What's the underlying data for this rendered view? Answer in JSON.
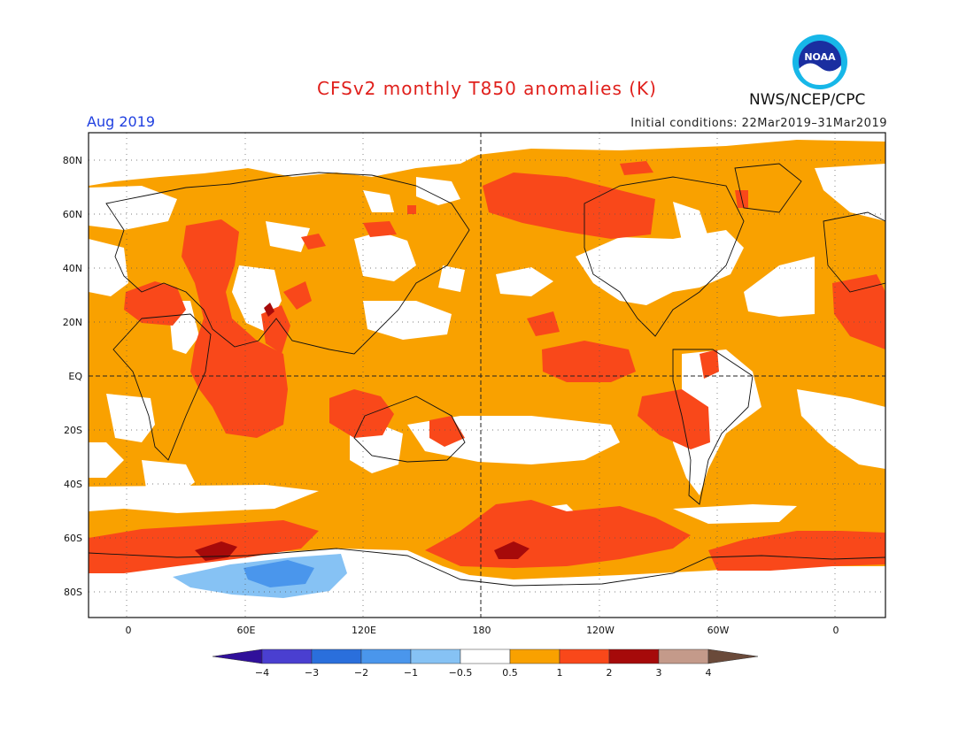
{
  "title": "CFSv2 monthly T850 anomalies (K)",
  "valid_month": "Aug 2019",
  "initial_conditions": "Initial conditions: 22Mar2019–31Mar2019",
  "agency": "NWS/NCEP/CPC",
  "logo_text": "NOAA",
  "lat_labels": [
    "80N",
    "60N",
    "40N",
    "20N",
    "EQ",
    "20S",
    "40S",
    "60S",
    "80S"
  ],
  "lon_labels": [
    "0",
    "60E",
    "120E",
    "180",
    "120W",
    "60W",
    "0"
  ],
  "colorbar": {
    "ticks": [
      "−4",
      "−3",
      "−2",
      "−1",
      "−0.5",
      "0.5",
      "1",
      "2",
      "3",
      "4"
    ],
    "colors": [
      "#30109a",
      "#4a3fd0",
      "#2a6fdc",
      "#4a96ec",
      "#86c2f4",
      "#ffffff",
      "#f9a100",
      "#f9481a",
      "#a60a0a",
      "#c49a8a",
      "#6a4a3a"
    ]
  },
  "colors": {
    "bg": "#f9a100",
    "white": "#ffffff",
    "red": "#f9481a",
    "dark": "#a60a0a",
    "lblue": "#86c2f4",
    "blue": "#4a96ec"
  }
}
